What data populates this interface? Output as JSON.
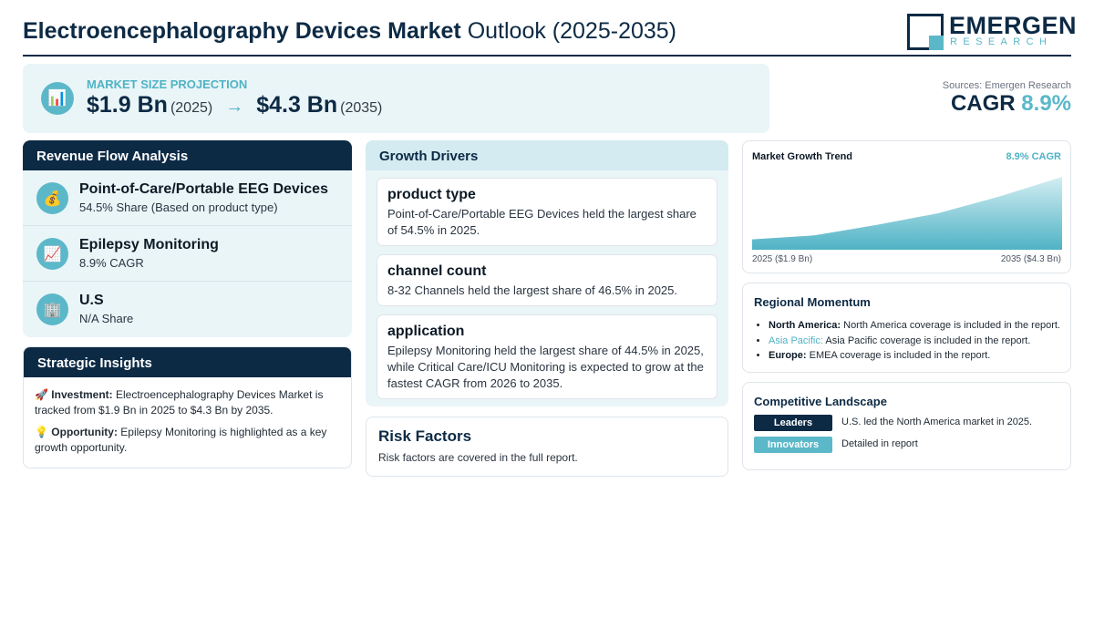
{
  "header": {
    "title_bold": "Electroencephalography Devices Market",
    "title_rest": " Outlook (2025-2035)",
    "logo_main": "EMERGEN",
    "logo_sub": "RESEARCH"
  },
  "projection": {
    "icon": "bar-chart-icon",
    "label": "MARKET SIZE PROJECTION",
    "start_value": "$1.9 Bn",
    "start_year": "(2025)",
    "arrow": "→",
    "end_value": "$4.3 Bn",
    "end_year": "(2035)"
  },
  "summary": {
    "sources": "Sources: Emergen Research",
    "cagr_label": "CAGR",
    "cagr_value": "8.9%"
  },
  "revenue_flow": {
    "title": "Revenue Flow Analysis",
    "items": [
      {
        "icon": "money-bag-icon",
        "title": "Point-of-Care/Portable EEG Devices",
        "subtitle": "54.5% Share (Based on product type)"
      },
      {
        "icon": "trend-up-icon",
        "title": "Epilepsy Monitoring",
        "subtitle": "8.9% CAGR"
      },
      {
        "icon": "building-icon",
        "title": "U.S",
        "subtitle": "N/A Share"
      }
    ]
  },
  "strategic_insights": {
    "title": "Strategic Insights",
    "items": [
      {
        "icon": "rocket-icon",
        "label": "Investment:",
        "text": "Electroencephalography Devices Market is tracked from $1.9 Bn in 2025 to $4.3 Bn by 2035."
      },
      {
        "icon": "lightbulb-icon",
        "label": "Opportunity:",
        "text": "Epilepsy Monitoring is highlighted as a key growth opportunity."
      }
    ]
  },
  "growth_drivers": {
    "title": "Growth Drivers",
    "items": [
      {
        "title": "product type",
        "text": "Point-of-Care/Portable EEG Devices held the largest share of 54.5% in 2025."
      },
      {
        "title": "channel count",
        "text": "8-32 Channels held the largest share of 46.5% in 2025."
      },
      {
        "title": "application",
        "text": "Epilepsy Monitoring held the largest share of 44.5% in 2025, while Critical Care/ICU Monitoring is expected to grow at the fastest CAGR from 2026 to 2035."
      }
    ]
  },
  "risk_factors": {
    "title": "Risk Factors",
    "text": "Risk factors are covered in the full report."
  },
  "market_trend": {
    "title": "Market Growth Trend",
    "cagr": "8.9% CAGR",
    "start_label": "2025 ($1.9 Bn)",
    "end_label": "2035 ($4.3 Bn)",
    "colors": {
      "fill_top": "#d4eef3",
      "fill_bottom": "#4fb3c5"
    }
  },
  "chart_data": {
    "type": "area",
    "x": [
      2025,
      2027,
      2029,
      2031,
      2033,
      2035
    ],
    "values": [
      1.9,
      2.05,
      2.45,
      2.9,
      3.55,
      4.3
    ],
    "title": "Market Growth Trend",
    "xlabel": "",
    "ylabel": "",
    "ylim": [
      1.5,
      4.3
    ],
    "grid": false
  },
  "regional_momentum": {
    "title": "Regional Momentum",
    "items": [
      {
        "region": "North America:",
        "text": "North America coverage is included in the report.",
        "highlight": false
      },
      {
        "region": "Asia Pacific:",
        "text": "Asia Pacific coverage is included in the report.",
        "highlight": true
      },
      {
        "region": "Europe:",
        "text": "EMEA coverage is included in the report.",
        "highlight": false
      }
    ]
  },
  "competitive_landscape": {
    "title": "Competitive Landscape",
    "rows": [
      {
        "badge": "Leaders",
        "text": "U.S. led the North America market in 2025.",
        "style": "dark"
      },
      {
        "badge": "Innovators",
        "text": "Detailed in report",
        "style": "light"
      }
    ]
  }
}
